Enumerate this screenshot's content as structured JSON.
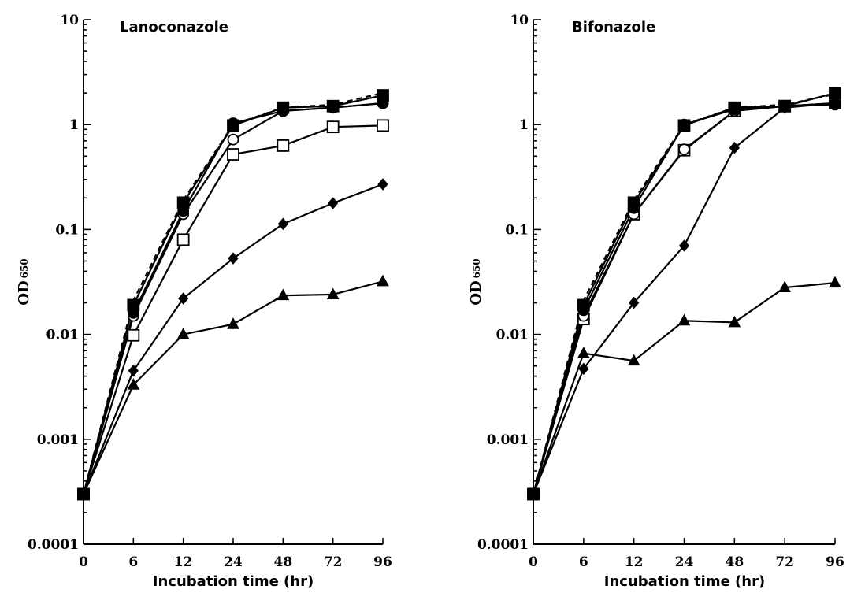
{
  "chart_data": [
    {
      "type": "line",
      "title": "Lanoconazole",
      "xlabel": "Incubation time (hr)",
      "ylabel": "OD",
      "ylabel_sub": "650",
      "yscale": "log",
      "ylim": [
        0.0001,
        10
      ],
      "yticks": [
        "0.0001",
        "0.001",
        "0.01",
        "0.1",
        "1",
        "10"
      ],
      "x": [
        "0",
        "6",
        "12",
        "24",
        "48",
        "72",
        "96"
      ],
      "grid": false,
      "series": [
        {
          "marker": "none",
          "dashed": true,
          "values": [
            0.0003,
            0.021,
            0.19,
            1.0,
            1.45,
            1.55,
            2.0
          ]
        },
        {
          "marker": "square-filled",
          "dashed": false,
          "values": [
            0.0003,
            0.019,
            0.18,
            0.98,
            1.45,
            1.5,
            1.9
          ]
        },
        {
          "marker": "circle-filled",
          "dashed": false,
          "values": [
            0.0003,
            0.016,
            0.15,
            1.03,
            1.35,
            1.45,
            1.6
          ]
        },
        {
          "marker": "circle-open",
          "dashed": false,
          "values": [
            0.0003,
            0.015,
            0.14,
            0.72,
            1.35,
            1.45,
            1.6
          ]
        },
        {
          "marker": "square-open",
          "dashed": false,
          "values": [
            0.0003,
            0.0098,
            0.08,
            0.52,
            0.63,
            0.95,
            0.98
          ]
        },
        {
          "marker": "diamond-filled",
          "dashed": false,
          "values": [
            0.0003,
            0.0045,
            0.022,
            0.053,
            0.113,
            0.178,
            0.27
          ]
        },
        {
          "marker": "triangle-filled",
          "dashed": false,
          "values": [
            0.0003,
            0.0033,
            0.01,
            0.0125,
            0.0235,
            0.024,
            0.032
          ]
        }
      ]
    },
    {
      "type": "line",
      "title": "Bifonazole",
      "xlabel": "Incubation time (hr)",
      "ylabel": "OD",
      "ylabel_sub": "650",
      "yscale": "log",
      "ylim": [
        0.0001,
        10
      ],
      "yticks": [
        "0.0001",
        "0.001",
        "0.01",
        "0.1",
        "1",
        "10"
      ],
      "x": [
        "0",
        "6",
        "12",
        "24",
        "48",
        "72",
        "96"
      ],
      "grid": false,
      "series": [
        {
          "marker": "none",
          "dashed": true,
          "values": [
            0.0003,
            0.021,
            0.19,
            1.0,
            1.45,
            1.55,
            1.95
          ]
        },
        {
          "marker": "square-filled",
          "dashed": false,
          "values": [
            0.0003,
            0.019,
            0.18,
            0.98,
            1.45,
            1.5,
            2.0
          ]
        },
        {
          "marker": "circle-filled",
          "dashed": false,
          "values": [
            0.0003,
            0.017,
            0.16,
            1.0,
            1.4,
            1.5,
            1.55
          ]
        },
        {
          "marker": "circle-open",
          "dashed": false,
          "values": [
            0.0003,
            0.015,
            0.14,
            0.58,
            1.35,
            1.5,
            1.6
          ]
        },
        {
          "marker": "square-open",
          "dashed": false,
          "values": [
            0.0003,
            0.014,
            0.14,
            0.57,
            1.35,
            1.5,
            1.6
          ]
        },
        {
          "marker": "diamond-filled",
          "dashed": false,
          "values": [
            0.0003,
            0.0047,
            0.02,
            0.07,
            0.6,
            1.45,
            1.6
          ]
        },
        {
          "marker": "triangle-filled",
          "dashed": false,
          "values": [
            0.0003,
            0.0066,
            0.0056,
            0.0135,
            0.013,
            0.028,
            0.031
          ]
        }
      ]
    }
  ]
}
